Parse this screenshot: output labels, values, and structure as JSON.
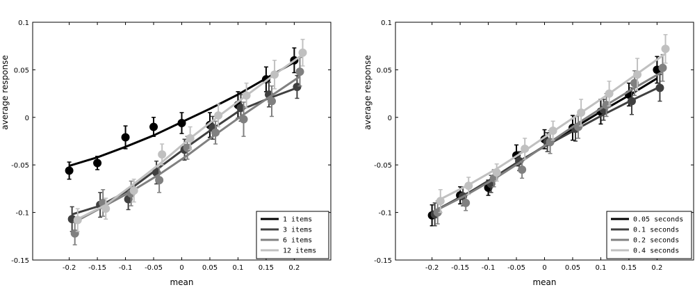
{
  "chart_data": [
    {
      "type": "line",
      "xlabel": "mean",
      "ylabel": "average response",
      "xlim": [
        -0.265,
        0.265
      ],
      "ylim": [
        -0.15,
        0.1
      ],
      "xticks": [
        -0.2,
        -0.15,
        -0.1,
        -0.05,
        0,
        0.05,
        0.1,
        0.15,
        0.2
      ],
      "xtick_labels": [
        "-0.2",
        "-0.15",
        "-0.1",
        "-0.05",
        "0",
        "0.05",
        "0.1",
        "0.15",
        "0.2"
      ],
      "yticks": [
        -0.15,
        -0.1,
        -0.05,
        0,
        0.05,
        0.1
      ],
      "ytick_labels": [
        "-0.15",
        "-0.1",
        "-0.05",
        "0",
        "0.05",
        "0.1"
      ],
      "legend_position": "bottom-right",
      "series": [
        {
          "name": "1 items",
          "color": "#000000",
          "x": [
            -0.2,
            -0.15,
            -0.1,
            -0.05,
            0,
            0.05,
            0.1,
            0.15,
            0.2
          ],
          "y": [
            -0.056,
            -0.048,
            -0.021,
            -0.01,
            -0.006,
            -0.008,
            0.013,
            0.04,
            0.06
          ],
          "err": [
            0.009,
            0.007,
            0.012,
            0.01,
            0.011,
            0.013,
            0.014,
            0.013,
            0.013
          ],
          "fit": [
            -0.051,
            -0.042,
            -0.031,
            -0.019,
            -0.005,
            0.009,
            0.024,
            0.041,
            0.058
          ]
        },
        {
          "name": "3 items",
          "color": "#404040",
          "x": [
            -0.195,
            -0.145,
            -0.095,
            -0.045,
            0.005,
            0.055,
            0.105,
            0.155,
            0.205
          ],
          "y": [
            -0.107,
            -0.092,
            -0.086,
            -0.058,
            -0.034,
            -0.011,
            0.01,
            0.024,
            0.032
          ],
          "err": [
            0.013,
            0.013,
            0.011,
            0.012,
            0.011,
            0.012,
            0.014,
            0.013,
            0.012
          ],
          "fit": [
            -0.102,
            -0.093,
            -0.077,
            -0.055,
            -0.033,
            -0.012,
            0.008,
            0.02,
            0.031
          ]
        },
        {
          "name": "6 items",
          "color": "#808080",
          "x": [
            -0.19,
            -0.14,
            -0.09,
            -0.04,
            0.01,
            0.06,
            0.11,
            0.16,
            0.21
          ],
          "y": [
            -0.122,
            -0.09,
            -0.08,
            -0.066,
            -0.032,
            -0.016,
            -0.002,
            0.017,
            0.048
          ],
          "err": [
            0.012,
            0.014,
            0.013,
            0.013,
            0.012,
            0.012,
            0.018,
            0.016,
            0.015
          ],
          "fit": [
            -0.11,
            -0.094,
            -0.078,
            -0.06,
            -0.04,
            -0.018,
            0.003,
            0.023,
            0.043
          ]
        },
        {
          "name": "12 items",
          "color": "#c0c0c0",
          "x": [
            -0.185,
            -0.135,
            -0.085,
            -0.035,
            0.015,
            0.065,
            0.115,
            0.165,
            0.215
          ],
          "y": [
            -0.108,
            -0.096,
            -0.077,
            -0.039,
            -0.022,
            0.002,
            0.023,
            0.045,
            0.068
          ],
          "err": [
            0.012,
            0.011,
            0.012,
            0.011,
            0.012,
            0.012,
            0.013,
            0.015,
            0.014
          ],
          "fit": [
            -0.107,
            -0.092,
            -0.07,
            -0.047,
            -0.022,
            0.001,
            0.023,
            0.045,
            0.066
          ]
        }
      ]
    },
    {
      "type": "line",
      "xlabel": "mean",
      "ylabel": "average response",
      "xlim": [
        -0.265,
        0.265
      ],
      "ylim": [
        -0.15,
        0.1
      ],
      "xticks": [
        -0.2,
        -0.15,
        -0.1,
        -0.05,
        0,
        0.05,
        0.1,
        0.15,
        0.2
      ],
      "xtick_labels": [
        "-0.2",
        "-0.15",
        "-0.1",
        "-0.05",
        "0",
        "0.05",
        "0.1",
        "0.15",
        "0.2"
      ],
      "yticks": [
        -0.15,
        -0.1,
        -0.05,
        0,
        0.05,
        0.1
      ],
      "ytick_labels": [
        "-0.15",
        "-0.1",
        "-0.05",
        "0",
        "0.05",
        "0.1"
      ],
      "legend_position": "bottom-right",
      "series": [
        {
          "name": "0.05 seconds",
          "color": "#000000",
          "x": [
            -0.2,
            -0.15,
            -0.1,
            -0.05,
            0,
            0.05,
            0.1,
            0.15,
            0.2
          ],
          "y": [
            -0.103,
            -0.082,
            -0.074,
            -0.04,
            -0.023,
            -0.011,
            0.006,
            0.024,
            0.05
          ],
          "err": [
            0.011,
            0.009,
            0.008,
            0.011,
            0.01,
            0.013,
            0.013,
            0.012,
            0.014
          ],
          "fit": [
            -0.1,
            -0.084,
            -0.068,
            -0.049,
            -0.03,
            -0.012,
            0.006,
            0.023,
            0.041
          ]
        },
        {
          "name": "0.1 seconds",
          "color": "#404040",
          "x": [
            -0.195,
            -0.145,
            -0.095,
            -0.045,
            0.005,
            0.055,
            0.105,
            0.155,
            0.205
          ],
          "y": [
            -0.102,
            -0.083,
            -0.07,
            -0.046,
            -0.026,
            -0.012,
            0.008,
            0.017,
            0.031
          ],
          "err": [
            0.012,
            0.01,
            0.009,
            0.01,
            0.01,
            0.013,
            0.011,
            0.014,
            0.014
          ],
          "fit": [
            -0.098,
            -0.083,
            -0.065,
            -0.046,
            -0.029,
            -0.013,
            0.003,
            0.018,
            0.032
          ]
        },
        {
          "name": "0.2 seconds",
          "color": "#808080",
          "x": [
            -0.19,
            -0.14,
            -0.09,
            -0.04,
            0.01,
            0.06,
            0.11,
            0.16,
            0.21
          ],
          "y": [
            -0.1,
            -0.09,
            -0.064,
            -0.055,
            -0.026,
            -0.01,
            0.013,
            0.036,
            0.052
          ],
          "err": [
            0.012,
            0.008,
            0.009,
            0.009,
            0.012,
            0.012,
            0.012,
            0.013,
            0.014
          ],
          "fit": [
            -0.097,
            -0.082,
            -0.065,
            -0.046,
            -0.026,
            -0.006,
            0.013,
            0.031,
            0.048
          ]
        },
        {
          "name": "0.4 seconds",
          "color": "#c0c0c0",
          "x": [
            -0.185,
            -0.135,
            -0.085,
            -0.035,
            0.015,
            0.065,
            0.115,
            0.165,
            0.215
          ],
          "y": [
            -0.088,
            -0.072,
            -0.058,
            -0.033,
            -0.014,
            0.005,
            0.025,
            0.045,
            0.072
          ],
          "err": [
            0.012,
            0.009,
            0.009,
            0.011,
            0.01,
            0.014,
            0.013,
            0.017,
            0.015
          ],
          "fit": [
            -0.086,
            -0.071,
            -0.054,
            -0.035,
            -0.015,
            0.005,
            0.025,
            0.046,
            0.067
          ]
        }
      ]
    }
  ]
}
